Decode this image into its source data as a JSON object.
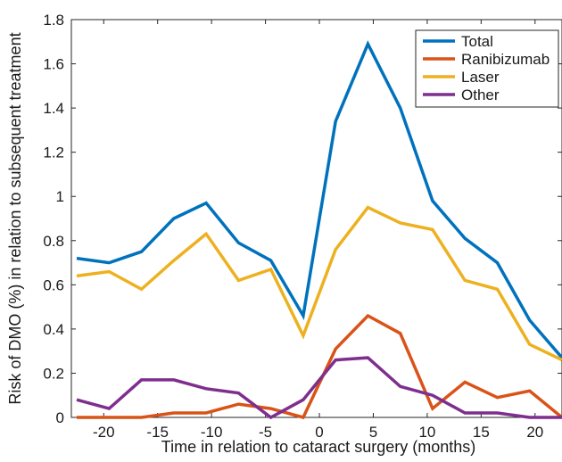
{
  "chart_data": {
    "type": "line",
    "title": "",
    "xlabel": "Time in relation to cataract surgery (months)",
    "ylabel": "Risk of DMO (%) in relation to subsequent treatment",
    "xlim": [
      -23,
      22.5
    ],
    "ylim": [
      0,
      1.8
    ],
    "xticks": [
      -20,
      -15,
      -10,
      -5,
      0,
      5,
      10,
      15,
      20
    ],
    "yticks": [
      0,
      0.2,
      0.4,
      0.6,
      0.8,
      1,
      1.2,
      1.4,
      1.6,
      1.8
    ],
    "grid": false,
    "legend_position": "top-right",
    "x": [
      -22.5,
      -19.5,
      -16.5,
      -13.5,
      -10.5,
      -7.5,
      -4.5,
      -1.5,
      1.5,
      4.5,
      7.5,
      10.5,
      13.5,
      16.5,
      19.5,
      22.5
    ],
    "series": [
      {
        "name": "Total",
        "color": "#0072bd",
        "values": [
          0.72,
          0.7,
          0.75,
          0.9,
          0.97,
          0.79,
          0.71,
          0.46,
          1.34,
          1.69,
          1.4,
          0.98,
          0.81,
          0.7,
          0.44,
          0.27
        ]
      },
      {
        "name": "Ranibizumab",
        "color": "#d95319",
        "values": [
          0.0,
          0.0,
          0.0,
          0.02,
          0.02,
          0.06,
          0.04,
          0.0,
          0.31,
          0.46,
          0.38,
          0.04,
          0.16,
          0.09,
          0.12,
          0.0
        ]
      },
      {
        "name": "Laser",
        "color": "#edb120",
        "values": [
          0.64,
          0.66,
          0.58,
          0.71,
          0.83,
          0.62,
          0.67,
          0.37,
          0.76,
          0.95,
          0.88,
          0.85,
          0.62,
          0.58,
          0.33,
          0.26
        ]
      },
      {
        "name": "Other",
        "color": "#7e2f8e",
        "values": [
          0.08,
          0.04,
          0.17,
          0.17,
          0.13,
          0.11,
          0.0,
          0.08,
          0.26,
          0.27,
          0.14,
          0.1,
          0.02,
          0.02,
          0.0,
          0.0
        ]
      }
    ]
  }
}
